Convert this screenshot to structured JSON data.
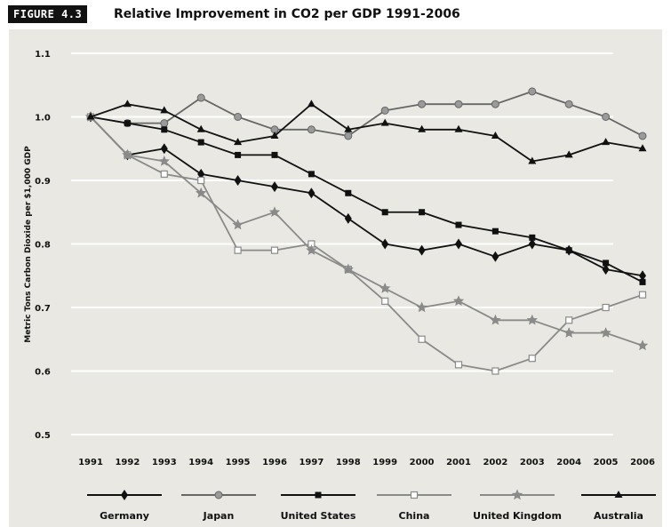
{
  "figure_label": "FIGURE 4.3",
  "chart_data": {
    "type": "line",
    "title": "Relative Improvement in CO2 per GDP 1991-2006",
    "xlabel": "",
    "ylabel": "Metric Tons Carbon Dioxide per $1,000 GDP",
    "x": [
      "1991",
      "1992",
      "1993",
      "1994",
      "1995",
      "1996",
      "1997",
      "1998",
      "1999",
      "2000",
      "2001",
      "2002",
      "2003",
      "2004",
      "2005",
      "2006"
    ],
    "ylim": [
      0.5,
      1.1
    ],
    "yticks": [
      "0.5",
      "0.6",
      "0.7",
      "0.8",
      "0.9",
      "1.0",
      "1.1"
    ],
    "grid": true,
    "legend_position": "bottom",
    "series": [
      {
        "name": "Germany",
        "color": "#111111",
        "marker": "diamond",
        "values": [
          1.0,
          0.94,
          0.95,
          0.91,
          0.9,
          0.89,
          0.88,
          0.84,
          0.8,
          0.79,
          0.8,
          0.78,
          0.8,
          0.79,
          0.76,
          0.75
        ]
      },
      {
        "name": "Japan",
        "color": "#666666",
        "marker": "circle",
        "values": [
          1.0,
          0.99,
          0.99,
          1.03,
          1.0,
          0.98,
          0.98,
          0.97,
          1.01,
          1.02,
          1.02,
          1.02,
          1.04,
          1.02,
          1.0,
          0.97
        ]
      },
      {
        "name": "United States",
        "color": "#111111",
        "marker": "square",
        "values": [
          1.0,
          0.99,
          0.98,
          0.96,
          0.94,
          0.94,
          0.91,
          0.88,
          0.85,
          0.85,
          0.83,
          0.82,
          0.81,
          0.79,
          0.77,
          0.74
        ]
      },
      {
        "name": "China",
        "color": "#8a8a8a",
        "marker": "open-square",
        "values": [
          1.0,
          0.94,
          0.91,
          0.9,
          0.79,
          0.79,
          0.8,
          0.76,
          0.71,
          0.65,
          0.61,
          0.6,
          0.62,
          0.68,
          0.7,
          0.72
        ]
      },
      {
        "name": "United Kingdom",
        "color": "#8a8a8a",
        "marker": "star",
        "values": [
          1.0,
          0.94,
          0.93,
          0.88,
          0.83,
          0.85,
          0.79,
          0.76,
          0.73,
          0.7,
          0.71,
          0.68,
          0.68,
          0.66,
          0.66,
          0.64
        ]
      },
      {
        "name": "Australia",
        "color": "#111111",
        "marker": "triangle",
        "values": [
          1.0,
          1.02,
          1.01,
          0.98,
          0.96,
          0.97,
          1.02,
          0.98,
          0.99,
          0.98,
          0.98,
          0.97,
          0.93,
          0.94,
          0.96,
          0.95
        ]
      }
    ]
  }
}
